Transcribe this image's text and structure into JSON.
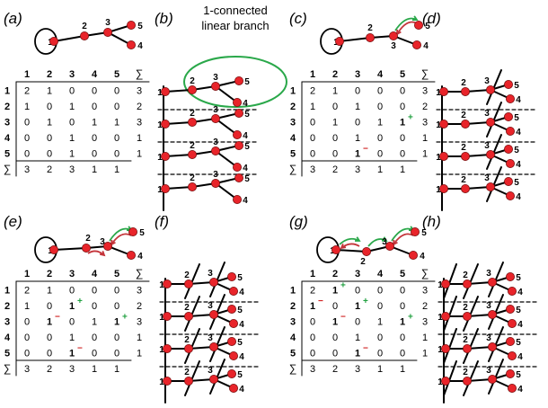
{
  "panel_labels": [
    "(a)",
    "(b)",
    "(c)",
    "(d)",
    "(e)",
    "(f)",
    "(g)",
    "(h)"
  ],
  "node_labels": [
    "1",
    "2",
    "3",
    "4",
    "5"
  ],
  "sum_symbol": "∑",
  "annotation": {
    "line1": "1-connected",
    "line2": "linear branch"
  },
  "colors": {
    "node_fill": "#e8242a",
    "edge": "#000000",
    "ellipse": "#2aa84a",
    "arrow_green": "#2aa84a",
    "arrow_red": "#c4343a",
    "mark_plus": "#20a040",
    "mark_minus": "#d02020"
  },
  "matrices": {
    "a": {
      "rows": [
        [
          {
            "v": "2"
          },
          {
            "v": "1"
          },
          {
            "v": "0"
          },
          {
            "v": "0"
          },
          {
            "v": "0"
          },
          {
            "v": "3"
          }
        ],
        [
          {
            "v": "1"
          },
          {
            "v": "0"
          },
          {
            "v": "1"
          },
          {
            "v": "0"
          },
          {
            "v": "0"
          },
          {
            "v": "2"
          }
        ],
        [
          {
            "v": "0"
          },
          {
            "v": "1"
          },
          {
            "v": "0"
          },
          {
            "v": "1"
          },
          {
            "v": "1"
          },
          {
            "v": "3"
          }
        ],
        [
          {
            "v": "0"
          },
          {
            "v": "0"
          },
          {
            "v": "1"
          },
          {
            "v": "0"
          },
          {
            "v": "0"
          },
          {
            "v": "1"
          }
        ],
        [
          {
            "v": "0"
          },
          {
            "v": "0"
          },
          {
            "v": "1"
          },
          {
            "v": "0"
          },
          {
            "v": "0"
          },
          {
            "v": "1"
          }
        ]
      ],
      "sums": [
        "3",
        "2",
        "3",
        "1",
        "1"
      ]
    },
    "c": {
      "rows": [
        [
          {
            "v": "2"
          },
          {
            "v": "1"
          },
          {
            "v": "0"
          },
          {
            "v": "0"
          },
          {
            "v": "0"
          },
          {
            "v": "3"
          }
        ],
        [
          {
            "v": "1"
          },
          {
            "v": "0"
          },
          {
            "v": "1"
          },
          {
            "v": "0"
          },
          {
            "v": "0"
          },
          {
            "v": "2"
          }
        ],
        [
          {
            "v": "0"
          },
          {
            "v": "1"
          },
          {
            "v": "0"
          },
          {
            "v": "1"
          },
          {
            "v": "1",
            "b": true,
            "m": "+"
          },
          {
            "v": "3"
          }
        ],
        [
          {
            "v": "0"
          },
          {
            "v": "0"
          },
          {
            "v": "1"
          },
          {
            "v": "0"
          },
          {
            "v": "0"
          },
          {
            "v": "1"
          }
        ],
        [
          {
            "v": "0"
          },
          {
            "v": "0"
          },
          {
            "v": "1",
            "b": true,
            "m": "-"
          },
          {
            "v": "0"
          },
          {
            "v": "0"
          },
          {
            "v": "1"
          }
        ]
      ],
      "sums": [
        "3",
        "2",
        "3",
        "1",
        "1"
      ]
    },
    "e": {
      "rows": [
        [
          {
            "v": "2"
          },
          {
            "v": "1"
          },
          {
            "v": "0"
          },
          {
            "v": "0"
          },
          {
            "v": "0"
          },
          {
            "v": "3"
          }
        ],
        [
          {
            "v": "1"
          },
          {
            "v": "0"
          },
          {
            "v": "1",
            "b": true,
            "m": "+"
          },
          {
            "v": "0"
          },
          {
            "v": "0"
          },
          {
            "v": "2"
          }
        ],
        [
          {
            "v": "0"
          },
          {
            "v": "1",
            "b": true,
            "m": "-"
          },
          {
            "v": "0"
          },
          {
            "v": "1"
          },
          {
            "v": "1",
            "b": true,
            "m": "+"
          },
          {
            "v": "3"
          }
        ],
        [
          {
            "v": "0"
          },
          {
            "v": "0"
          },
          {
            "v": "1"
          },
          {
            "v": "0"
          },
          {
            "v": "0"
          },
          {
            "v": "1"
          }
        ],
        [
          {
            "v": "0"
          },
          {
            "v": "0"
          },
          {
            "v": "1",
            "b": true,
            "m": "-"
          },
          {
            "v": "0"
          },
          {
            "v": "0"
          },
          {
            "v": "1"
          }
        ]
      ],
      "sums": [
        "3",
        "2",
        "3",
        "1",
        "1"
      ]
    },
    "g": {
      "rows": [
        [
          {
            "v": "2"
          },
          {
            "v": "1",
            "b": true,
            "m": "+"
          },
          {
            "v": "0"
          },
          {
            "v": "0"
          },
          {
            "v": "0"
          },
          {
            "v": "3"
          }
        ],
        [
          {
            "v": "1",
            "b": true,
            "m": "-"
          },
          {
            "v": "0"
          },
          {
            "v": "1",
            "b": true,
            "m": "+"
          },
          {
            "v": "0"
          },
          {
            "v": "0"
          },
          {
            "v": "2"
          }
        ],
        [
          {
            "v": "0"
          },
          {
            "v": "1",
            "b": true,
            "m": "-"
          },
          {
            "v": "0"
          },
          {
            "v": "1"
          },
          {
            "v": "1",
            "b": true,
            "m": "+"
          },
          {
            "v": "3"
          }
        ],
        [
          {
            "v": "0"
          },
          {
            "v": "0"
          },
          {
            "v": "1"
          },
          {
            "v": "0"
          },
          {
            "v": "0"
          },
          {
            "v": "1"
          }
        ],
        [
          {
            "v": "0"
          },
          {
            "v": "0"
          },
          {
            "v": "1",
            "b": true,
            "m": "-"
          },
          {
            "v": "0"
          },
          {
            "v": "0"
          },
          {
            "v": "1"
          }
        ]
      ],
      "sums": [
        "3",
        "2",
        "3",
        "1",
        "1"
      ]
    }
  }
}
